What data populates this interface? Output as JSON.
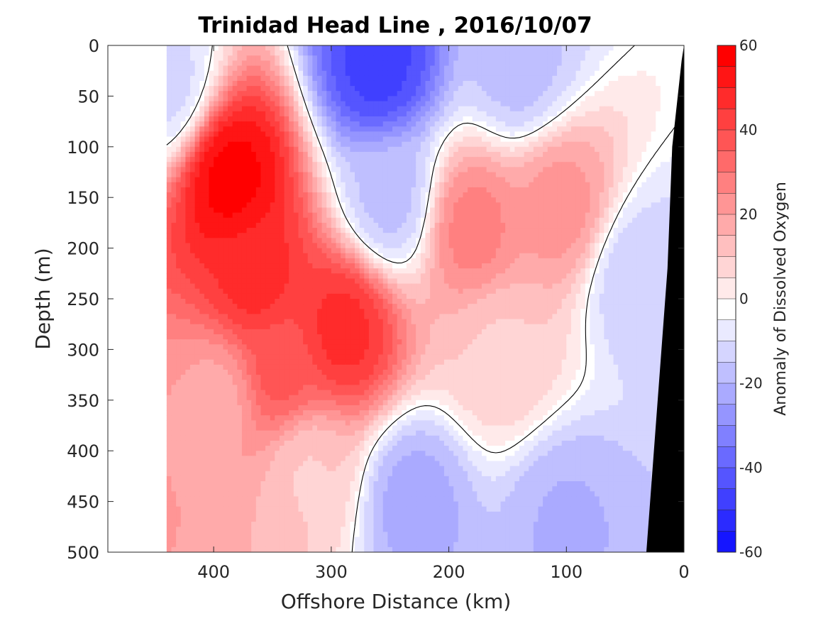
{
  "chart_data": {
    "type": "heatmap",
    "title": "Trinidad Head Line , 2016/10/07",
    "xlabel": "Offshore Distance (km)",
    "ylabel": "Depth (m)",
    "colorbar_label": "Anomaly of Dissolved Oxygen",
    "xlim": [
      490,
      0
    ],
    "ylim": [
      0,
      500
    ],
    "x_ticks": [
      400,
      300,
      200,
      100,
      0
    ],
    "y_ticks": [
      0,
      50,
      100,
      150,
      200,
      250,
      300,
      350,
      400,
      450,
      500
    ],
    "colorbar_range": [
      -60,
      60
    ],
    "colorbar_ticks": [
      60,
      40,
      20,
      0,
      -20,
      -40,
      -60
    ],
    "contour_interval": 5,
    "zero_contour_drawn": true,
    "colormap": {
      "negative": "#0000ff",
      "zero": "#ffffff",
      "positive": "#ff0000"
    },
    "bathymetry_color": "#000000",
    "data_extent_km": [
      440,
      0
    ],
    "anomaly_features": [
      {
        "x_km": 385,
        "depth_m": 130,
        "value": 60
      },
      {
        "x_km": 365,
        "depth_m": 230,
        "value": 50
      },
      {
        "x_km": 290,
        "depth_m": 280,
        "value": 50
      },
      {
        "x_km": 345,
        "depth_m": 320,
        "value": 40
      },
      {
        "x_km": 395,
        "depth_m": 350,
        "value": 20
      },
      {
        "x_km": 320,
        "depth_m": 420,
        "value": 12
      },
      {
        "x_km": 180,
        "depth_m": 180,
        "value": 30
      },
      {
        "x_km": 105,
        "depth_m": 160,
        "value": 25
      },
      {
        "x_km": 155,
        "depth_m": 300,
        "value": 12
      },
      {
        "x_km": 260,
        "depth_m": 20,
        "value": -45
      },
      {
        "x_km": 250,
        "depth_m": 150,
        "value": -15
      },
      {
        "x_km": 230,
        "depth_m": 450,
        "value": -20
      },
      {
        "x_km": 140,
        "depth_m": 20,
        "value": -15
      },
      {
        "x_km": 40,
        "depth_m": 230,
        "value": -12
      },
      {
        "x_km": 100,
        "depth_m": 470,
        "value": -18
      },
      {
        "x_km": 440,
        "depth_m": 40,
        "value": -10
      }
    ]
  }
}
